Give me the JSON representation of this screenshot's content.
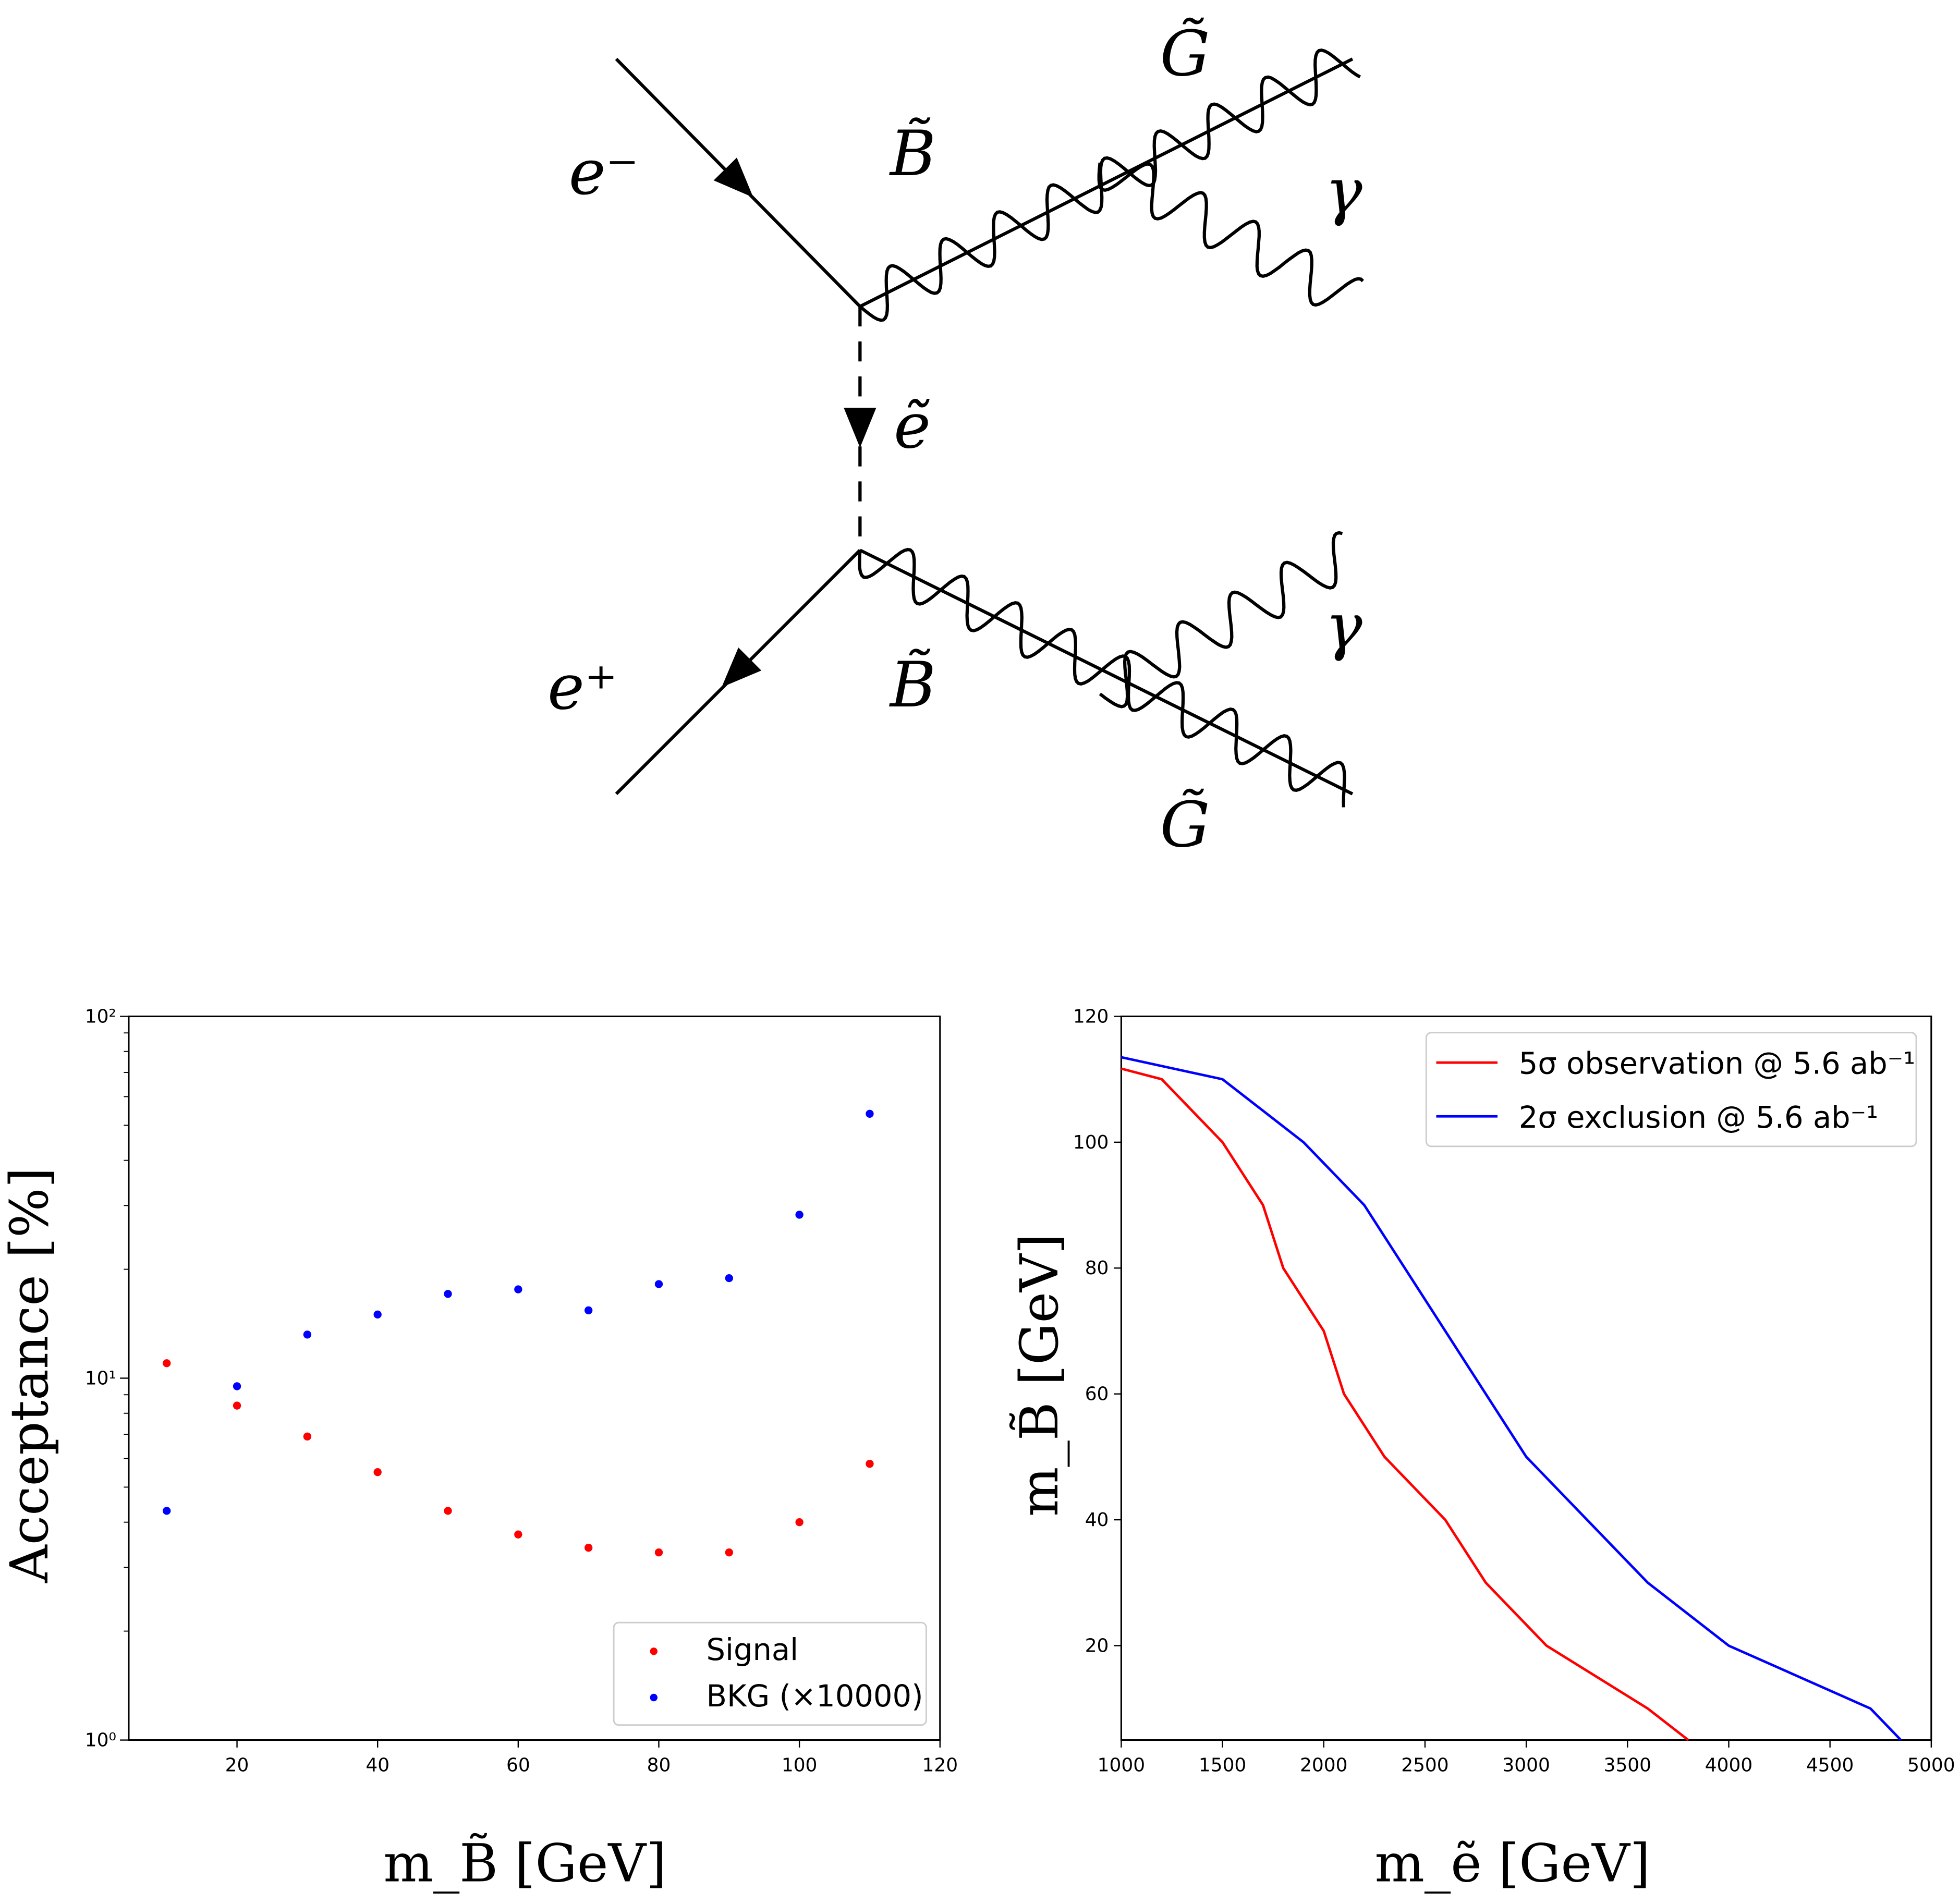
{
  "diagram": {
    "labels": {
      "e_minus": "e⁻",
      "e_plus": "e⁺",
      "bino_top": "B̃",
      "bino_bottom": "B̃",
      "gravitino_top": "G̃",
      "gravitino_bottom": "G̃",
      "photon_top": "γ",
      "photon_bottom": "γ",
      "selectron": "ẽ"
    }
  },
  "chart_data": [
    {
      "type": "scatter",
      "title": "",
      "xlabel": "m_B̃ [GeV]",
      "ylabel": "Acceptance [%]",
      "xlim": [
        4.6,
        120
      ],
      "ylim": [
        1,
        100
      ],
      "yscale": "log",
      "xticks": [
        "20",
        "40",
        "60",
        "80",
        "100",
        "120"
      ],
      "yticks": [
        "10⁰",
        "10¹",
        "10²"
      ],
      "legend_position": "lower-right",
      "x": [
        10,
        20,
        30,
        40,
        50,
        60,
        70,
        80,
        90,
        100,
        110
      ],
      "series": [
        {
          "name": "Signal",
          "color": "#ff0000",
          "values": [
            11.0,
            8.4,
            6.9,
            5.5,
            4.3,
            3.7,
            3.4,
            3.3,
            3.3,
            4.0,
            5.8
          ]
        },
        {
          "name": "BKG (×10000)",
          "color": "#0000ff",
          "values": [
            4.3,
            9.5,
            13.2,
            15.0,
            17.1,
            17.6,
            15.4,
            18.2,
            18.9,
            28.3,
            53.8
          ]
        }
      ]
    },
    {
      "type": "line",
      "title": "",
      "xlabel": "m_ẽ [GeV]",
      "ylabel": "m_B̃ [GeV]",
      "xlim": [
        1000,
        5000
      ],
      "ylim": [
        5,
        120
      ],
      "xticks": [
        "1000",
        "1500",
        "2000",
        "2500",
        "3000",
        "3500",
        "4000",
        "4500",
        "5000"
      ],
      "yticks": [
        "20",
        "40",
        "60",
        "80",
        "100",
        "120"
      ],
      "legend_position": "top-right",
      "series": [
        {
          "name": "5σ observation @ 5.6 ab⁻¹",
          "color": "#ff0000",
          "x": [
            1000,
            1200,
            1500,
            1700,
            1800,
            2000,
            2100,
            2300,
            2600,
            2800,
            3100,
            3600,
            3800
          ],
          "y": [
            111.7,
            110,
            100,
            90,
            80,
            70,
            60,
            50,
            40,
            30,
            20,
            10,
            5
          ]
        },
        {
          "name": "2σ exclusion @ 5.6 ab⁻¹",
          "color": "#0000ff",
          "x": [
            1000,
            1500,
            1900,
            2200,
            3000,
            3600,
            4000,
            4700,
            4850
          ],
          "y": [
            113.5,
            110,
            100,
            90,
            50,
            30,
            20,
            10,
            5
          ]
        }
      ]
    }
  ]
}
